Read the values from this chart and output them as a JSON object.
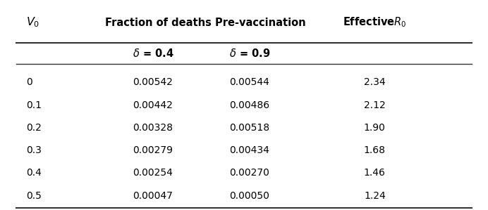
{
  "col_v0": [
    "0",
    "0.1",
    "0.2",
    "0.3",
    "0.4",
    "0.5"
  ],
  "col_delta04": [
    "0.00542",
    "0.00442",
    "0.00328",
    "0.00279",
    "0.00254",
    "0.00047"
  ],
  "col_delta09": [
    "0.00544",
    "0.00486",
    "0.00518",
    "0.00434",
    "0.00270",
    "0.00050"
  ],
  "col_R0": [
    "2.34",
    "2.12",
    "1.90",
    "1.68",
    "1.46",
    "1.24"
  ],
  "bg_color": "#ffffff",
  "text_color": "#000000",
  "header_fontsize": 10.5,
  "subheader_fontsize": 10.5,
  "data_fontsize": 10,
  "line_color": "#333333"
}
